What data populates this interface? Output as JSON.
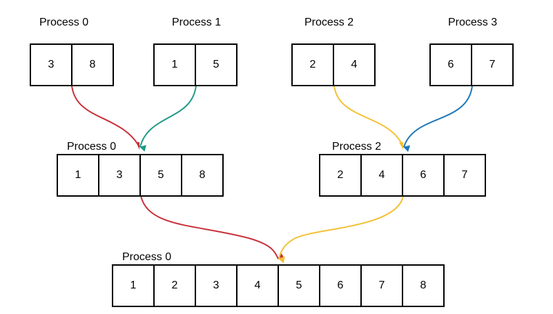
{
  "colors": {
    "red": "#c8303a",
    "teal": "#1f9a86",
    "yellow": "#f2c134",
    "blue": "#1e77b6",
    "stroke": "#000000"
  },
  "top_row": [
    {
      "label": "Process 0",
      "values": [
        "3",
        "8"
      ]
    },
    {
      "label": "Process 1",
      "values": [
        "1",
        "5"
      ]
    },
    {
      "label": "Process 2",
      "values": [
        "2",
        "4"
      ]
    },
    {
      "label": "Process 3",
      "values": [
        "6",
        "7"
      ]
    }
  ],
  "middle_row": [
    {
      "label": "Process 0",
      "values": [
        "1",
        "3",
        "5",
        "8"
      ]
    },
    {
      "label": "Process 2",
      "values": [
        "2",
        "4",
        "6",
        "7"
      ]
    }
  ],
  "bottom_row": {
    "label": "Process 0",
    "values": [
      "1",
      "2",
      "3",
      "4",
      "5",
      "6",
      "7",
      "8"
    ]
  },
  "arrows": [
    {
      "from": "top-process-0",
      "to": "middle-process-0",
      "color": "red"
    },
    {
      "from": "top-process-1",
      "to": "middle-process-0",
      "color": "teal"
    },
    {
      "from": "top-process-2",
      "to": "middle-process-2",
      "color": "yellow"
    },
    {
      "from": "top-process-3",
      "to": "middle-process-2",
      "color": "blue"
    },
    {
      "from": "middle-process-0",
      "to": "bottom-process-0",
      "color": "red"
    },
    {
      "from": "middle-process-2",
      "to": "bottom-process-0",
      "color": "yellow"
    }
  ]
}
